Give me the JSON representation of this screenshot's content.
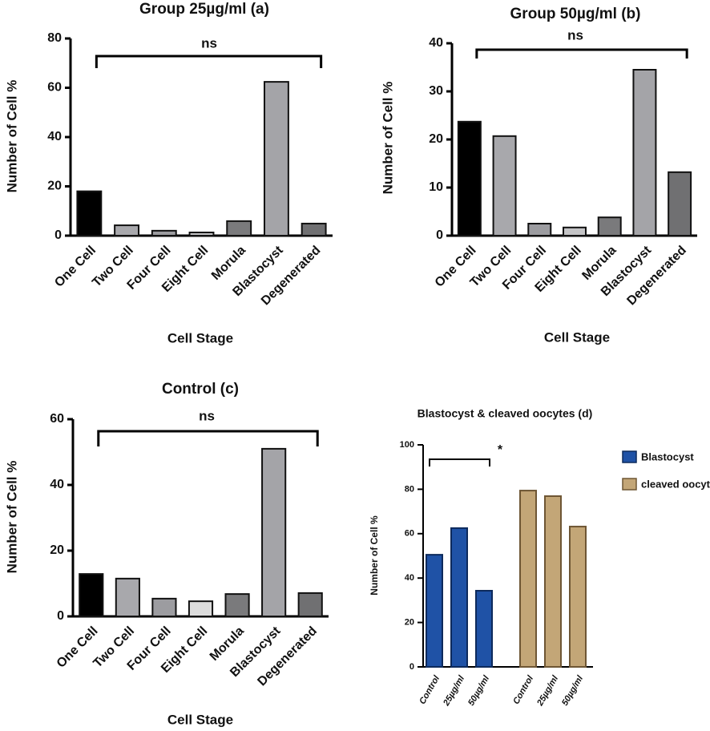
{
  "chart_data": [
    {
      "type": "bar",
      "title": "Group 25µg/ml (a)",
      "xlabel": "Cell Stage",
      "ylabel": "Number of Cell %",
      "annotation": "ns",
      "categories": [
        "One Cell",
        "Two Cell",
        "Four Cell",
        "Eight Cell",
        "Morula",
        "Blastocyst",
        "Degenerated"
      ],
      "values": [
        18,
        4.2,
        2,
        1.3,
        5.9,
        62.4,
        4.9
      ],
      "colors": [
        "#000000",
        "#a8a8ac",
        "#9c9ca0",
        "#c4c4c6",
        "#7a7a7c",
        "#a4a4a8",
        "#707072"
      ],
      "ylim": [
        0,
        80
      ],
      "yticks": [
        0,
        20,
        40,
        60,
        80
      ]
    },
    {
      "type": "bar",
      "title": "Group 50µg/ml (b)",
      "xlabel": "Cell Stage",
      "ylabel": "Number of Cell %",
      "annotation": "ns",
      "categories": [
        "One Cell",
        "Two Cell",
        "Four Cell",
        "Eight Cell",
        "Morula",
        "Blastocyst",
        "Degenerated"
      ],
      "values": [
        23.7,
        20.7,
        2.5,
        1.7,
        3.8,
        34.5,
        13.2
      ],
      "colors": [
        "#000000",
        "#a8a8ac",
        "#9c9ca0",
        "#c4c4c6",
        "#7a7a7c",
        "#a4a4a8",
        "#707072"
      ],
      "ylim": [
        0,
        40
      ],
      "yticks": [
        0,
        10,
        20,
        30,
        40
      ]
    },
    {
      "type": "bar",
      "title": "Control (c)",
      "xlabel": "Cell Stage",
      "ylabel": "Number of Cell %",
      "annotation": "ns",
      "categories": [
        "One Cell",
        "Two Cell",
        "Four Cell",
        "Eight Cell",
        "Morula",
        "Blastocyst",
        "Degenerated"
      ],
      "values": [
        12.9,
        11.5,
        5.4,
        4.6,
        6.8,
        51,
        7.1
      ],
      "colors": [
        "#000000",
        "#a8a8ac",
        "#9c9ca0",
        "#dcdcdc",
        "#7a7a7c",
        "#a4a4a8",
        "#707072"
      ],
      "ylim": [
        0,
        60
      ],
      "yticks": [
        0,
        20,
        40,
        60
      ]
    },
    {
      "type": "grouped_bar",
      "title": "Blastocyst & cleaved oocytes (d)",
      "ylabel": "Number of Cell %",
      "annotation": "*",
      "categories": [
        "Control",
        "25µg/ml",
        "50µg/ml"
      ],
      "series": [
        {
          "name": "Blastocyst",
          "color": "#1f52a6",
          "values": [
            50.5,
            62.5,
            34.3
          ]
        },
        {
          "name": "cleaved oocytes",
          "color": "#c3a677",
          "values": [
            79.4,
            76.9,
            63.2
          ]
        }
      ],
      "ylim": [
        0,
        100
      ],
      "yticks": [
        0,
        20,
        40,
        60,
        80,
        100
      ],
      "legend": "right"
    }
  ]
}
